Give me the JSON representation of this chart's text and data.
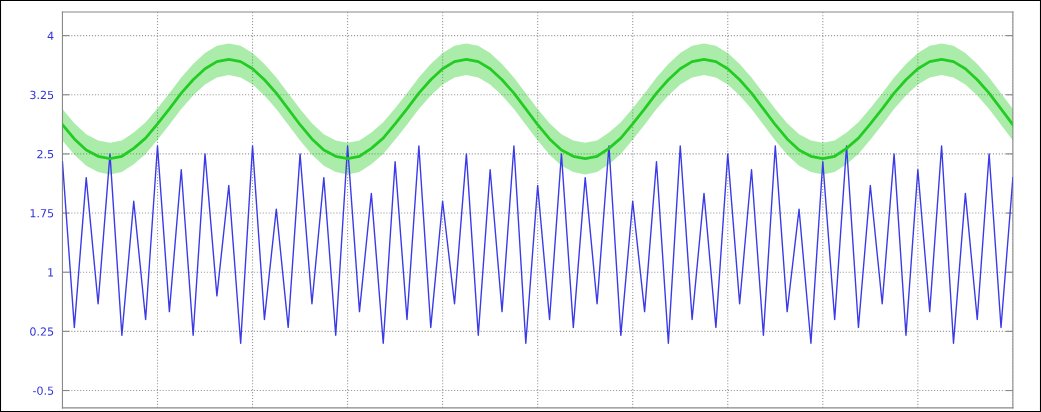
{
  "chart_data": {
    "type": "line",
    "ylim": [
      -0.72,
      4.3
    ],
    "yticks": [
      {
        "value": -0.5,
        "label": "-0.5"
      },
      0.25,
      1,
      1.75,
      2.5,
      3.25,
      4
    ],
    "categories": [
      null,
      null,
      null,
      null,
      null,
      null,
      null,
      null,
      null,
      null,
      null,
      null,
      null,
      null,
      null,
      null,
      null,
      null,
      null,
      null,
      null,
      null,
      null,
      null,
      null,
      null,
      null,
      null,
      null,
      null,
      null,
      null,
      null,
      null,
      null,
      null,
      null,
      null,
      null,
      null,
      null,
      null,
      null,
      null,
      null,
      null,
      null,
      null,
      null,
      null,
      null,
      null,
      null,
      null,
      null,
      null,
      null,
      null,
      null,
      null,
      null,
      null,
      null,
      null,
      null,
      null,
      null,
      null,
      null,
      null,
      null,
      null,
      null,
      null,
      null,
      null,
      null,
      null,
      null,
      null,
      null
    ],
    "grid": true,
    "marker": "none",
    "line_style": "solid",
    "series": [
      {
        "color": "#3a3ae8",
        "values": [
          2.4,
          0.3,
          2.2,
          0.6,
          2.5,
          0.2,
          1.9,
          0.4,
          2.6,
          0.5,
          2.3,
          0.2,
          2.5,
          0.7,
          2.1,
          0.1,
          2.6,
          0.4,
          1.8,
          0.3,
          2.5,
          0.6,
          2.2,
          0.2,
          2.6,
          0.5,
          2.0,
          0.1,
          2.4,
          0.4,
          2.6,
          0.3,
          1.9,
          0.6,
          2.5,
          0.2,
          2.3,
          0.5,
          2.6,
          0.1,
          2.1,
          0.4,
          2.5,
          0.3,
          2.2,
          0.6,
          2.6,
          0.2,
          1.9,
          0.5,
          2.4,
          0.1,
          2.6,
          0.4,
          2.0,
          0.3,
          2.5,
          0.6,
          2.3,
          0.2,
          2.6,
          0.5,
          1.8,
          0.1,
          2.4,
          0.4,
          2.6,
          0.3,
          2.1,
          0.6,
          2.5,
          0.2,
          2.3,
          0.5,
          2.6,
          0.1,
          2.0,
          0.4,
          2.5,
          0.3,
          2.2
        ]
      },
      {
        "color": "#22cc22",
        "values": [
          2.87,
          2.69,
          2.55,
          2.47,
          2.44,
          2.47,
          2.57,
          2.7,
          2.88,
          3.07,
          3.27,
          3.44,
          3.58,
          3.67,
          3.7,
          3.67,
          3.58,
          3.44,
          3.27,
          3.07,
          2.87,
          2.69,
          2.55,
          2.47,
          2.44,
          2.47,
          2.57,
          2.7,
          2.88,
          3.07,
          3.27,
          3.44,
          3.58,
          3.67,
          3.7,
          3.67,
          3.58,
          3.44,
          3.27,
          3.07,
          2.87,
          2.69,
          2.55,
          2.47,
          2.44,
          2.47,
          2.57,
          2.7,
          2.88,
          3.07,
          3.27,
          3.44,
          3.58,
          3.67,
          3.7,
          3.67,
          3.58,
          3.44,
          3.27,
          3.07,
          2.87,
          2.69,
          2.55,
          2.47,
          2.44,
          2.47,
          2.57,
          2.7,
          2.88,
          3.07,
          3.27,
          3.44,
          3.58,
          3.67,
          3.7,
          3.67,
          3.58,
          3.44,
          3.27,
          3.07,
          2.87
        ],
        "lower": [
          2.67,
          2.49,
          2.35,
          2.27,
          2.24,
          2.27,
          2.37,
          2.5,
          2.68,
          2.87,
          3.07,
          3.24,
          3.38,
          3.47,
          3.5,
          3.47,
          3.38,
          3.24,
          3.07,
          2.87,
          2.67,
          2.49,
          2.35,
          2.27,
          2.24,
          2.27,
          2.37,
          2.5,
          2.68,
          2.87,
          3.07,
          3.24,
          3.38,
          3.47,
          3.5,
          3.47,
          3.38,
          3.24,
          3.07,
          2.87,
          2.67,
          2.49,
          2.35,
          2.27,
          2.24,
          2.27,
          2.37,
          2.5,
          2.68,
          2.87,
          3.07,
          3.24,
          3.38,
          3.47,
          3.5,
          3.47,
          3.38,
          3.24,
          3.07,
          2.87,
          2.67,
          2.49,
          2.35,
          2.27,
          2.24,
          2.27,
          2.37,
          2.5,
          2.68,
          2.87,
          3.07,
          3.24,
          3.38,
          3.47,
          3.5,
          3.47,
          3.38,
          3.24,
          3.07,
          2.87,
          2.67
        ],
        "upper": [
          3.07,
          2.89,
          2.75,
          2.67,
          2.64,
          2.67,
          2.77,
          2.9,
          3.08,
          3.27,
          3.47,
          3.64,
          3.78,
          3.87,
          3.9,
          3.87,
          3.78,
          3.64,
          3.47,
          3.27,
          3.07,
          2.89,
          2.75,
          2.67,
          2.64,
          2.67,
          2.77,
          2.9,
          3.08,
          3.27,
          3.47,
          3.64,
          3.78,
          3.87,
          3.9,
          3.87,
          3.78,
          3.64,
          3.47,
          3.27,
          3.07,
          2.89,
          2.75,
          2.67,
          2.64,
          2.67,
          2.77,
          2.9,
          3.08,
          3.27,
          3.47,
          3.64,
          3.78,
          3.87,
          3.9,
          3.87,
          3.78,
          3.64,
          3.47,
          3.27,
          3.07,
          2.89,
          2.75,
          2.67,
          2.64,
          2.67,
          2.77,
          2.9,
          3.08,
          3.27,
          3.47,
          3.64,
          3.78,
          3.87,
          3.9,
          3.87,
          3.78,
          3.64,
          3.47,
          3.27,
          3.07
        ]
      }
    ]
  }
}
